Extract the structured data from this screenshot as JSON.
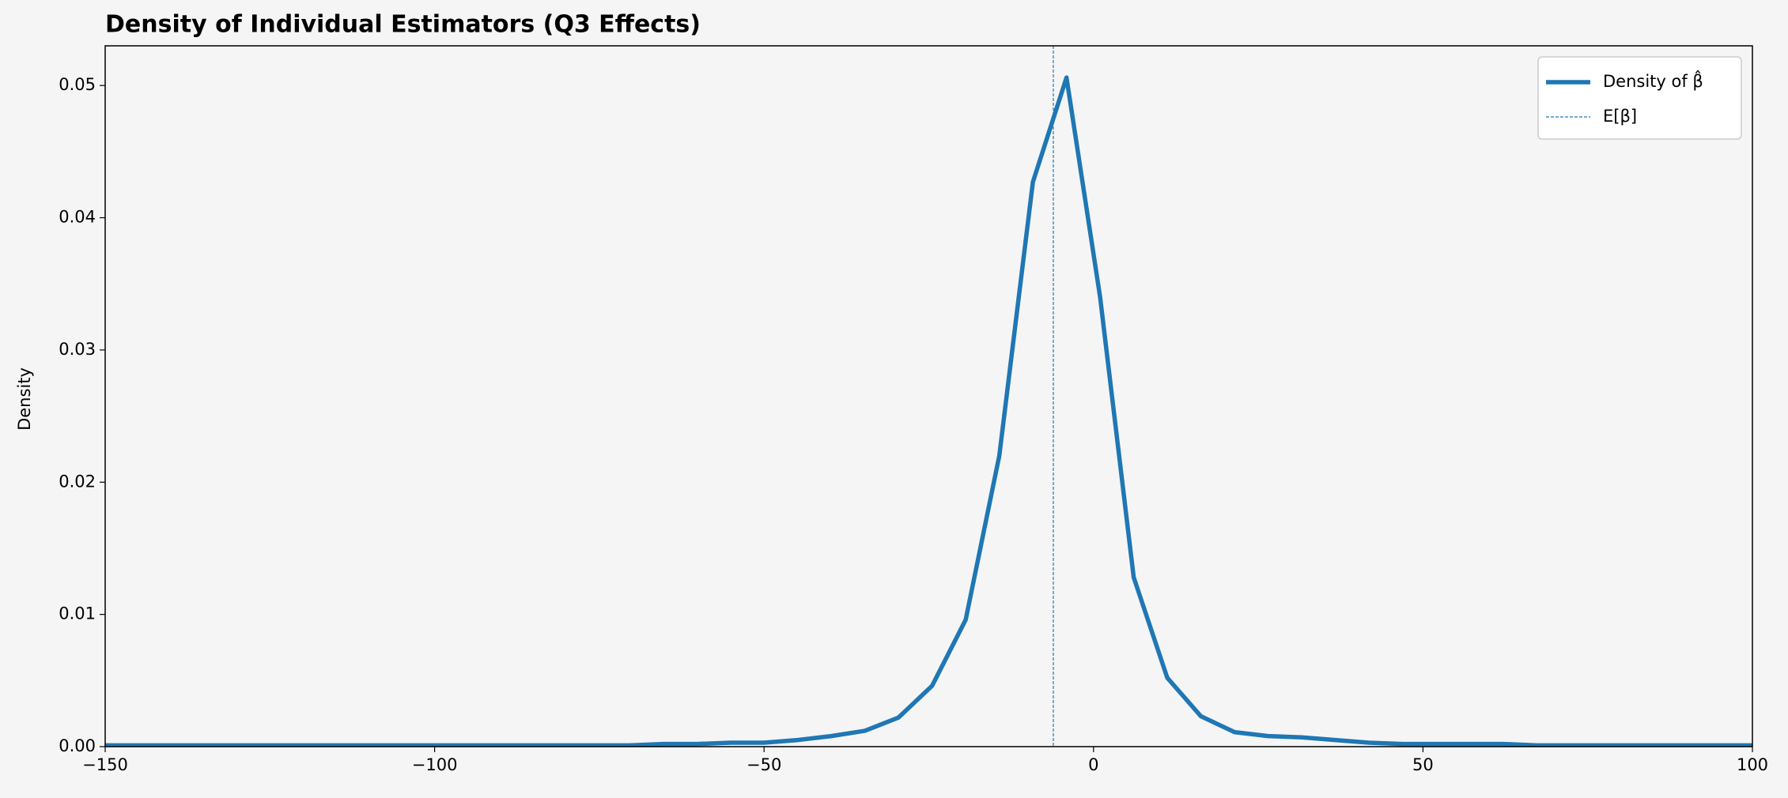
{
  "chart_data": {
    "type": "line",
    "title": "Density of Individual Estimators (Q3 Effects)",
    "ylabel": "Density",
    "x": [
      -150,
      -146.9,
      -141.8,
      -136.7,
      -131.6,
      -126.5,
      -121.4,
      -116.3,
      -111.2,
      -106.1,
      -101.0,
      -95.9,
      -90.8,
      -85.7,
      -80.6,
      -75.5,
      -70.4,
      -65.3,
      -60.2,
      -55.1,
      -50.0,
      -44.9,
      -39.8,
      -34.7,
      -29.6,
      -24.5,
      -19.4,
      -14.3,
      -9.2,
      -4.1,
      1.0,
      6.1,
      11.2,
      16.3,
      21.4,
      26.5,
      31.6,
      36.7,
      41.8,
      46.9,
      52.0,
      57.1,
      62.2,
      67.3,
      72.4,
      77.5,
      82.6,
      87.7,
      92.8,
      97.9,
      100
    ],
    "series": [
      {
        "name": "Density of β̂",
        "color": "#1f77b4",
        "values": [
          0.0001,
          0.0001,
          0.0001,
          0.0001,
          0.0001,
          0.0001,
          0.0001,
          0.0001,
          0.0001,
          0.0001,
          0.0001,
          0.0001,
          0.0001,
          0.0001,
          0.0001,
          0.0001,
          0.0001,
          0.0002,
          0.0002,
          0.0003,
          0.0003,
          0.0005,
          0.0008,
          0.0012,
          0.0022,
          0.0046,
          0.0096,
          0.022,
          0.0427,
          0.0506,
          0.034,
          0.0128,
          0.0052,
          0.0023,
          0.0011,
          0.0008,
          0.0007,
          0.0005,
          0.0003,
          0.0002,
          0.0002,
          0.0002,
          0.0002,
          0.0001,
          0.0001,
          0.0001,
          0.0001,
          0.0001,
          0.0001,
          0.0001,
          0.0001
        ]
      }
    ],
    "vline": {
      "name": "E[β]",
      "x": -6.1,
      "color": "#1f77b4"
    },
    "xlim": [
      -150,
      100
    ],
    "ylim": [
      0,
      0.053
    ],
    "xticks": [
      {
        "value": -150,
        "label": "−150"
      },
      {
        "value": -100,
        "label": "−100"
      },
      {
        "value": -50,
        "label": "−50"
      },
      0,
      50,
      100
    ],
    "yticks": [
      {
        "value": 0,
        "label": "0.00"
      },
      {
        "value": 0.01,
        "label": "0.01"
      },
      {
        "value": 0.02,
        "label": "0.02"
      },
      {
        "value": 0.03,
        "label": "0.03"
      },
      {
        "value": 0.04,
        "label": "0.04"
      },
      {
        "value": 0.05,
        "label": "0.05"
      }
    ],
    "grid": false,
    "legend": "upper right"
  }
}
